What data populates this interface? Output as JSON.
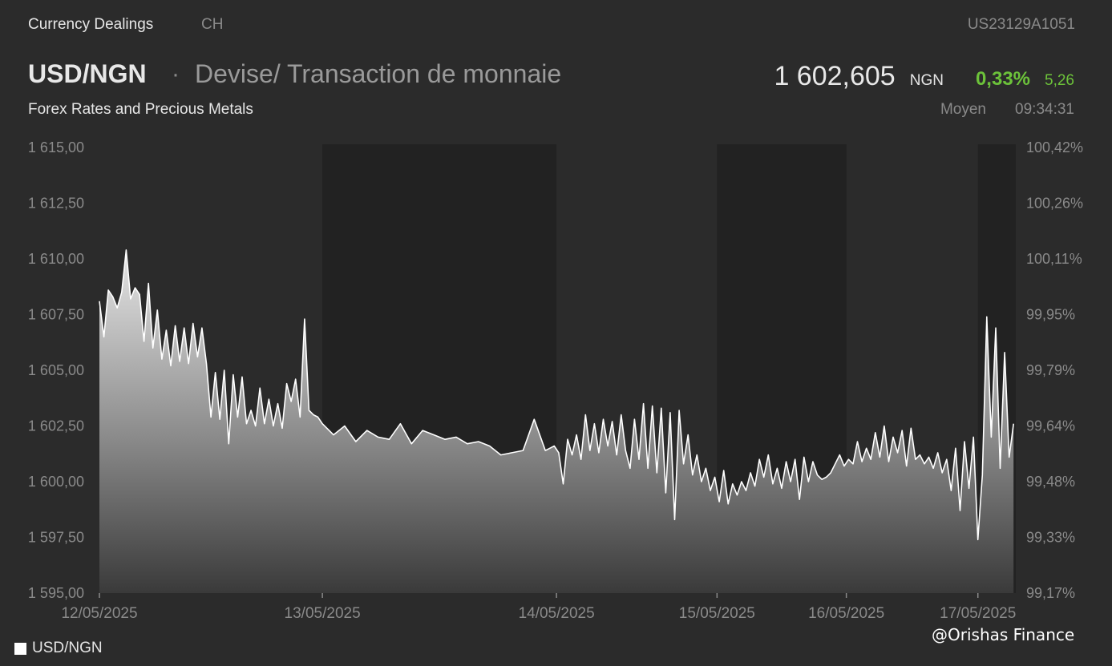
{
  "header": {
    "source": "Currency Dealings",
    "exchange": "CH",
    "isin": "US23129A1051",
    "symbol": "USD/NGN",
    "separator": "·",
    "instrument": "Devise/ Transaction de monnaie",
    "category": "Forex Rates and Precious Metals",
    "price": "1 602,605",
    "currency": "NGN",
    "change_pct": "0,33%",
    "change_abs": "5,26",
    "price_type": "Moyen",
    "time": "09:34:31"
  },
  "legend": {
    "label": "USD/NGN"
  },
  "watermark": "@Orishas Finance",
  "colors": {
    "background": "#2b2b2b",
    "shaded_band": "#222222",
    "line": "#ffffff",
    "positive": "#6cc23a"
  },
  "chart_data": {
    "type": "area",
    "ylim": [
      1595,
      1615
    ],
    "y_ticks": [
      1595,
      1597.5,
      1600,
      1602.5,
      1605,
      1607.5,
      1610,
      1612.5,
      1615
    ],
    "y_tick_labels": [
      "1 595,00",
      "1 597,50",
      "1 600,00",
      "1 602,50",
      "1 605,00",
      "1 607,50",
      "1 610,00",
      "1 612,50",
      "1 615,00"
    ],
    "y2_tick_labels": [
      "99,17%",
      "99,33%",
      "99,48%",
      "99,64%",
      "99,79%",
      "99,95%",
      "100,11%",
      "100,26%",
      "100,42%"
    ],
    "x_tick_labels": [
      "12/05/2025",
      "13/05/2025",
      "14/05/2025",
      "15/05/2025",
      "16/05/2025",
      "17/05/2025"
    ],
    "x_tick_positions": [
      0,
      1,
      2.05,
      2.77,
      3.35,
      3.94
    ],
    "x_range": [
      0,
      4.11
    ],
    "shaded_ranges": [
      [
        1,
        2.05
      ],
      [
        2.77,
        3.35
      ],
      [
        3.94,
        4.11
      ]
    ],
    "grid": false,
    "legend_position": "bottom-left",
    "series": [
      {
        "name": "USD/NGN",
        "x": [
          0,
          0.02,
          0.04,
          0.06,
          0.08,
          0.1,
          0.12,
          0.14,
          0.16,
          0.18,
          0.2,
          0.22,
          0.24,
          0.26,
          0.28,
          0.3,
          0.32,
          0.34,
          0.36,
          0.38,
          0.4,
          0.42,
          0.44,
          0.46,
          0.48,
          0.5,
          0.52,
          0.54,
          0.56,
          0.58,
          0.6,
          0.62,
          0.64,
          0.66,
          0.68,
          0.7,
          0.72,
          0.74,
          0.76,
          0.78,
          0.8,
          0.82,
          0.84,
          0.86,
          0.88,
          0.9,
          0.92,
          0.94,
          0.96,
          0.98,
          1.0,
          1.05,
          1.1,
          1.15,
          1.2,
          1.25,
          1.3,
          1.35,
          1.4,
          1.45,
          1.5,
          1.55,
          1.6,
          1.65,
          1.7,
          1.75,
          1.8,
          1.85,
          1.9,
          1.95,
          2.0,
          2.02,
          2.04,
          2.06,
          2.08,
          2.1,
          2.12,
          2.14,
          2.16,
          2.18,
          2.2,
          2.22,
          2.24,
          2.26,
          2.28,
          2.3,
          2.32,
          2.34,
          2.36,
          2.38,
          2.4,
          2.42,
          2.44,
          2.46,
          2.48,
          2.5,
          2.52,
          2.54,
          2.56,
          2.58,
          2.6,
          2.62,
          2.64,
          2.66,
          2.68,
          2.7,
          2.72,
          2.74,
          2.76,
          2.78,
          2.8,
          2.82,
          2.84,
          2.86,
          2.88,
          2.9,
          2.92,
          2.94,
          2.96,
          2.98,
          3.0,
          3.02,
          3.04,
          3.06,
          3.08,
          3.1,
          3.12,
          3.14,
          3.16,
          3.18,
          3.2,
          3.22,
          3.24,
          3.26,
          3.28,
          3.3,
          3.32,
          3.34,
          3.36,
          3.38,
          3.4,
          3.42,
          3.44,
          3.46,
          3.48,
          3.5,
          3.52,
          3.54,
          3.56,
          3.58,
          3.6,
          3.62,
          3.64,
          3.66,
          3.68,
          3.7,
          3.72,
          3.74,
          3.76,
          3.78,
          3.8,
          3.82,
          3.84,
          3.86,
          3.88,
          3.9,
          3.92,
          3.94,
          3.96,
          3.98,
          4.0,
          4.02,
          4.04,
          4.06,
          4.08,
          4.1
        ],
        "values": [
          1608.1,
          1606.5,
          1608.6,
          1608.3,
          1607.8,
          1608.5,
          1610.4,
          1608.2,
          1608.7,
          1608.4,
          1606.3,
          1608.9,
          1606.0,
          1607.7,
          1605.5,
          1606.8,
          1605.2,
          1607.0,
          1605.4,
          1606.9,
          1605.3,
          1607.1,
          1605.6,
          1606.9,
          1605.3,
          1602.9,
          1604.9,
          1602.8,
          1605.0,
          1601.7,
          1604.8,
          1602.9,
          1604.7,
          1602.6,
          1603.2,
          1602.5,
          1604.2,
          1602.6,
          1603.7,
          1602.5,
          1603.5,
          1602.4,
          1604.4,
          1603.6,
          1604.6,
          1602.9,
          1607.3,
          1603.2,
          1603.0,
          1602.9,
          1602.6,
          1602.1,
          1602.5,
          1601.8,
          1602.3,
          1602.0,
          1601.9,
          1602.6,
          1601.7,
          1602.3,
          1602.1,
          1601.9,
          1602.0,
          1601.7,
          1601.8,
          1601.6,
          1601.2,
          1601.3,
          1601.4,
          1602.8,
          1601.4,
          1601.5,
          1601.6,
          1601.3,
          1599.9,
          1601.9,
          1601.2,
          1602.1,
          1601.0,
          1603.0,
          1601.4,
          1602.6,
          1601.3,
          1602.8,
          1601.6,
          1602.7,
          1601.2,
          1603.0,
          1601.4,
          1600.6,
          1602.8,
          1601.0,
          1603.5,
          1600.6,
          1603.4,
          1600.4,
          1603.3,
          1599.5,
          1603.1,
          1598.3,
          1603.2,
          1600.8,
          1602.1,
          1600.3,
          1601.2,
          1600.0,
          1600.6,
          1599.6,
          1600.2,
          1599.1,
          1600.5,
          1599.0,
          1599.9,
          1599.4,
          1600.0,
          1599.6,
          1600.4,
          1599.8,
          1601.0,
          1600.2,
          1601.2,
          1599.9,
          1600.6,
          1599.7,
          1600.9,
          1600.0,
          1601.0,
          1599.2,
          1601.1,
          1600.0,
          1600.9,
          1600.3,
          1600.1,
          1600.2,
          1600.4,
          1600.8,
          1601.2,
          1600.7,
          1601.0,
          1600.8,
          1601.8,
          1600.9,
          1601.5,
          1601.0,
          1602.2,
          1601.1,
          1602.5,
          1600.9,
          1602.0,
          1601.3,
          1602.3,
          1600.7,
          1602.4,
          1601.0,
          1601.2,
          1600.8,
          1601.1,
          1600.6,
          1601.3,
          1600.4,
          1601.0,
          1599.6,
          1601.5,
          1598.7,
          1601.8,
          1599.7,
          1602.0,
          1597.4,
          1600.3,
          1607.4,
          1602.0,
          1606.9,
          1600.6,
          1605.8,
          1601.1,
          1602.6
        ]
      }
    ]
  }
}
